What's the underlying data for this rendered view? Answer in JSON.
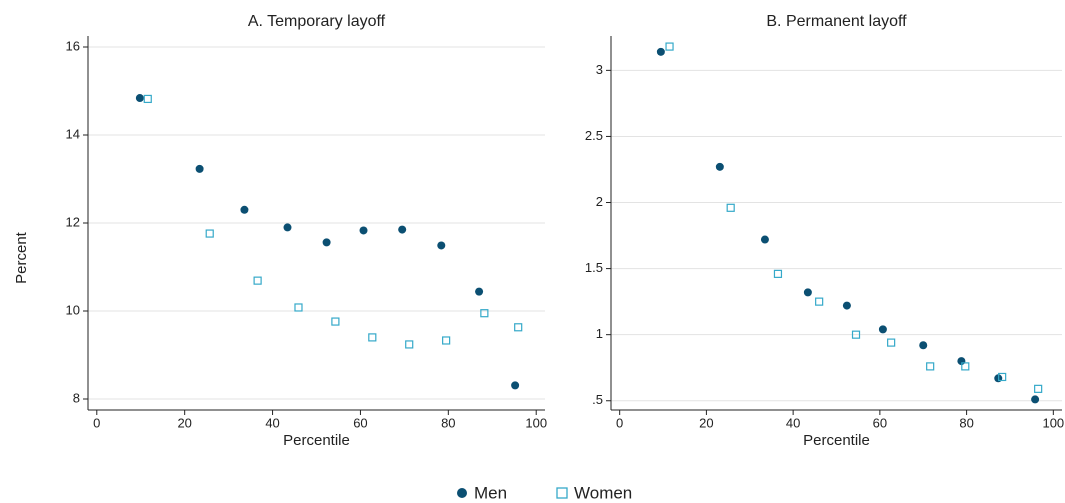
{
  "chart_data": [
    {
      "type": "scatter",
      "title": "A. Temporary layoff",
      "x_label": "Percentile",
      "y_label": "Percent",
      "xlim": [
        -2,
        102
      ],
      "xticks": [
        0,
        20,
        40,
        60,
        80,
        100
      ],
      "ylim": [
        7.75,
        16.25
      ],
      "yticks": [
        8,
        10,
        12,
        14,
        16
      ],
      "grid": true,
      "legend": "bottom",
      "series": [
        {
          "name": "Men",
          "color": "#0b4f72",
          "marker": "circle",
          "x": [
            9.8,
            23.4,
            33.6,
            43.4,
            52.3,
            60.7,
            69.5,
            78.4,
            87.0,
            95.2
          ],
          "values": [
            14.84,
            13.23,
            12.3,
            11.9,
            11.56,
            11.83,
            11.85,
            11.49,
            10.44,
            8.31
          ]
        },
        {
          "name": "Women",
          "color": "#35a9c9",
          "marker": "square",
          "x": [
            11.6,
            25.7,
            36.6,
            45.9,
            54.3,
            62.7,
            71.1,
            79.5,
            88.2,
            95.9
          ],
          "values": [
            14.82,
            11.76,
            10.69,
            10.08,
            9.76,
            9.4,
            9.24,
            9.33,
            9.95,
            9.63
          ]
        }
      ]
    },
    {
      "type": "scatter",
      "title": "B. Permanent layoff",
      "x_label": "Percentile",
      "xlim": [
        -2,
        102
      ],
      "xticks": [
        0,
        20,
        40,
        60,
        80,
        100
      ],
      "ylim": [
        0.43,
        3.26
      ],
      "yticks": [
        {
          "value": 0.5,
          "label": ".5"
        },
        1,
        1.5,
        2,
        2.5,
        3
      ],
      "grid": true,
      "series": [
        {
          "color": "#0b4f72",
          "marker": "circle",
          "x": [
            9.5,
            23.1,
            33.5,
            43.4,
            52.4,
            60.7,
            70.0,
            78.8,
            87.3,
            95.8
          ],
          "values": [
            3.14,
            2.27,
            1.72,
            1.32,
            1.22,
            1.04,
            0.92,
            0.8,
            0.67,
            0.51
          ]
        },
        {
          "color": "#35a9c9",
          "marker": "square",
          "x": [
            11.5,
            25.6,
            36.5,
            46.0,
            54.5,
            62.6,
            71.6,
            79.7,
            88.2,
            96.5
          ],
          "values": [
            3.18,
            1.96,
            1.46,
            1.25,
            1.0,
            0.94,
            0.76,
            0.76,
            0.68,
            0.59
          ]
        }
      ]
    }
  ]
}
